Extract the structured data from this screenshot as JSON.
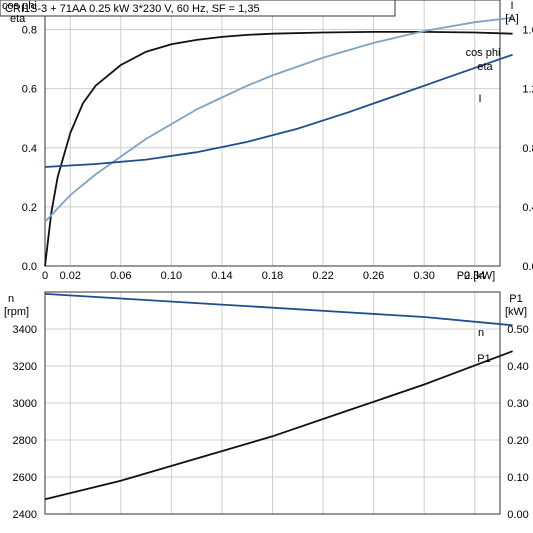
{
  "title": "CRI1S-3 + 71AA   0.25 kW   3*230 V, 60 Hz, SF = 1,35",
  "colors": {
    "eta": "#111111",
    "cos_phi": "#7fa3c4",
    "current": "#1f4e8c",
    "speed": "#1f4e8c",
    "power": "#111111"
  },
  "chart_data": [
    {
      "type": "line",
      "xlabel": "P2 [kW]",
      "xlim": [
        0,
        0.36
      ],
      "xticks": [
        "0",
        "0.02",
        "0.06",
        "0.10",
        "0.14",
        "0.18",
        "0.22",
        "0.26",
        "0.30",
        "0.34"
      ],
      "xtick_values": [
        0,
        0.02,
        0.06,
        0.1,
        0.14,
        0.18,
        0.22,
        0.26,
        0.3,
        0.34
      ],
      "ylabel_left": [
        "cos phi",
        "eta"
      ],
      "ylim_left": [
        0,
        0.9
      ],
      "yticks_left": [
        "0.0",
        "0.2",
        "0.4",
        "0.6",
        "0.8"
      ],
      "ylabel_right": [
        "I",
        "[A]"
      ],
      "ylim_right": [
        0,
        1.8
      ],
      "yticks_right": [
        "0.0",
        "0.4",
        "0.8",
        "1.2",
        "1.6"
      ],
      "grid": true,
      "series": [
        {
          "name": "eta",
          "axis": "left",
          "x": [
            0,
            0.005,
            0.01,
            0.02,
            0.03,
            0.04,
            0.06,
            0.08,
            0.1,
            0.12,
            0.14,
            0.16,
            0.18,
            0.22,
            0.26,
            0.3,
            0.34,
            0.37
          ],
          "y": [
            0,
            0.18,
            0.3,
            0.45,
            0.55,
            0.61,
            0.68,
            0.725,
            0.75,
            0.765,
            0.775,
            0.782,
            0.786,
            0.79,
            0.792,
            0.792,
            0.79,
            0.786
          ]
        },
        {
          "name": "cos phi",
          "axis": "left",
          "x": [
            0,
            0.02,
            0.04,
            0.06,
            0.08,
            0.1,
            0.12,
            0.14,
            0.16,
            0.18,
            0.2,
            0.22,
            0.24,
            0.26,
            0.28,
            0.3,
            0.32,
            0.34,
            0.37
          ],
          "y": [
            0.15,
            0.24,
            0.31,
            0.37,
            0.43,
            0.48,
            0.53,
            0.57,
            0.61,
            0.645,
            0.675,
            0.705,
            0.73,
            0.755,
            0.775,
            0.795,
            0.81,
            0.825,
            0.84
          ]
        },
        {
          "name": "I",
          "axis": "right",
          "x": [
            0,
            0.04,
            0.08,
            0.12,
            0.16,
            0.2,
            0.24,
            0.28,
            0.32,
            0.37
          ],
          "y": [
            0.67,
            0.69,
            0.72,
            0.77,
            0.84,
            0.93,
            1.04,
            1.16,
            1.28,
            1.43
          ]
        }
      ]
    },
    {
      "type": "line",
      "xlim": [
        0,
        0.36
      ],
      "ylabel_left": [
        "n",
        "[rpm]"
      ],
      "ylim_left": [
        2400,
        3600
      ],
      "yticks_left": [
        "2400",
        "2600",
        "2800",
        "3000",
        "3200",
        "3400"
      ],
      "ylabel_right": [
        "P1",
        "[kW]"
      ],
      "ylim_right": [
        0,
        0.6
      ],
      "yticks_right": [
        "0.00",
        "0.10",
        "0.20",
        "0.30",
        "0.40",
        "0.50"
      ],
      "grid": true,
      "series": [
        {
          "name": "n",
          "axis": "left",
          "x": [
            0,
            0.06,
            0.12,
            0.18,
            0.24,
            0.3,
            0.37
          ],
          "y": [
            3590,
            3565,
            3540,
            3515,
            3490,
            3465,
            3420
          ]
        },
        {
          "name": "P1",
          "axis": "right",
          "x": [
            0,
            0.06,
            0.12,
            0.18,
            0.24,
            0.3,
            0.37
          ],
          "y": [
            0.04,
            0.09,
            0.15,
            0.21,
            0.28,
            0.35,
            0.44
          ]
        }
      ]
    }
  ]
}
